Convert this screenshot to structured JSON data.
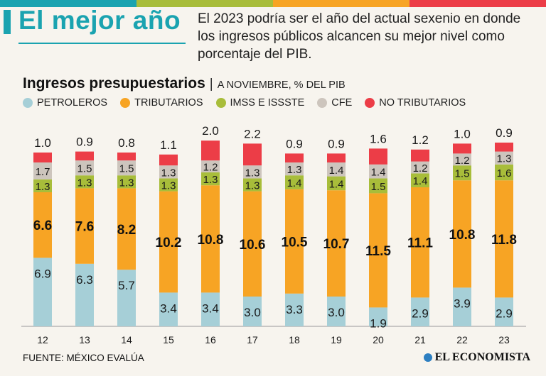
{
  "header": {
    "headline": "El mejor año",
    "intro": "El 2023 podría ser el año del actual sexenio en donde los ingresos públicos alcancen su mejor nivel como porcentaje del PIB."
  },
  "chart_title": {
    "main": "Ingresos presupuestarios",
    "separator": "|",
    "subtitle": "A NOVIEMBRE, % DEL PIB"
  },
  "legend": [
    {
      "label": "PETROLEROS",
      "color": "#a6cfd7"
    },
    {
      "label": "TRIBUTARIOS",
      "color": "#f7a424"
    },
    {
      "label": "IMSS E ISSSTE",
      "color": "#a8bd3a"
    },
    {
      "label": "CFE",
      "color": "#cdc5bd"
    },
    {
      "label": "NO TRIBUTARIOS",
      "color": "#ec3d47"
    }
  ],
  "chart_data": {
    "type": "bar",
    "stacked": true,
    "title": "Ingresos presupuestarios",
    "subtitle": "A NOVIEMBRE, % DEL PIB",
    "categories": [
      "12",
      "13",
      "14",
      "15",
      "16",
      "17",
      "18",
      "19",
      "20",
      "21",
      "22",
      "23"
    ],
    "series": [
      {
        "name": "PETROLEROS",
        "color": "#a6cfd7",
        "values": [
          6.9,
          6.3,
          5.7,
          3.4,
          3.4,
          3.0,
          3.3,
          3.0,
          1.9,
          2.9,
          3.9,
          2.9
        ]
      },
      {
        "name": "TRIBUTARIOS",
        "color": "#f7a424",
        "values": [
          6.6,
          7.6,
          8.2,
          10.2,
          10.8,
          10.6,
          10.5,
          10.7,
          11.5,
          11.1,
          10.8,
          11.8
        ]
      },
      {
        "name": "IMSS E ISSSTE",
        "color": "#a8bd3a",
        "values": [
          1.3,
          1.3,
          1.3,
          1.3,
          1.3,
          1.3,
          1.4,
          1.4,
          1.5,
          1.4,
          1.5,
          1.6
        ]
      },
      {
        "name": "CFE",
        "color": "#cdc5bd",
        "values": [
          1.7,
          1.5,
          1.5,
          1.3,
          1.2,
          1.3,
          1.3,
          1.4,
          1.4,
          1.2,
          1.2,
          1.3
        ]
      },
      {
        "name": "NO TRIBUTARIOS",
        "color": "#ec3d47",
        "values": [
          1.0,
          0.9,
          0.8,
          1.1,
          2.0,
          2.2,
          0.9,
          0.9,
          1.6,
          1.2,
          1.0,
          0.9
        ]
      }
    ],
    "ylim": [
      0,
      21
    ],
    "grid": false,
    "legend": "top-left"
  },
  "colors": {
    "accent": "#1aa3b0",
    "top_stripe": [
      "#1aa3b0",
      "#a8bd3a",
      "#f7a424",
      "#ec3d47"
    ]
  },
  "footer": {
    "source": "FUENTE: MÉXICO EVALÚA",
    "brand": "EL ECONOMISTA"
  }
}
